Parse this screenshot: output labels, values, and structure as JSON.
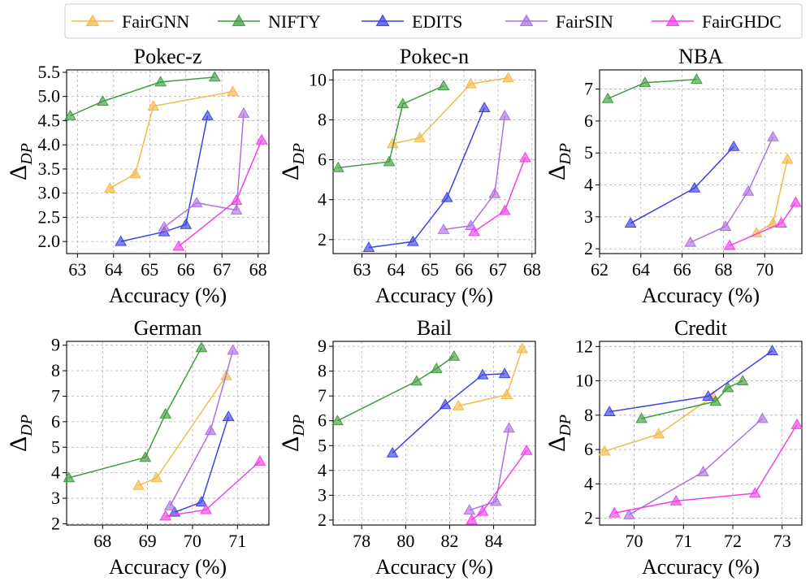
{
  "colors": {
    "FairGNN": "#f5b94a",
    "NIFTY": "#3f9c3f",
    "EDITS": "#3d43e0",
    "FairSIN": "#ae72e0",
    "FairGHDC": "#f240e8"
  },
  "legend": [
    "FairGNN",
    "NIFTY",
    "EDITS",
    "FairSIN",
    "FairGHDC"
  ],
  "chart_data": [
    {
      "type": "line",
      "title": "Pokec-z",
      "xlabel": "Accuracy (%)",
      "ylabel": "ΔDP",
      "xlim": [
        62.7,
        68.3
      ],
      "ylim": [
        1.75,
        5.55
      ],
      "xticks": [
        63,
        64,
        65,
        66,
        67,
        68
      ],
      "yticks": [
        2.0,
        2.5,
        3.0,
        3.5,
        4.0,
        4.5,
        5.0,
        5.5
      ],
      "ytick_labels": [
        "2.0",
        "2.5",
        "3.0",
        "3.5",
        "4.0",
        "4.5",
        "5.0",
        "5.5"
      ],
      "series": [
        {
          "name": "FairGNN",
          "points": [
            [
              63.9,
              3.1
            ],
            [
              64.6,
              3.4
            ],
            [
              65.1,
              4.8
            ],
            [
              67.3,
              5.1
            ]
          ]
        },
        {
          "name": "NIFTY",
          "points": [
            [
              62.8,
              4.6
            ],
            [
              63.7,
              4.9
            ],
            [
              65.3,
              5.3
            ],
            [
              66.8,
              5.4
            ]
          ]
        },
        {
          "name": "EDITS",
          "points": [
            [
              64.2,
              2.0
            ],
            [
              65.4,
              2.2
            ],
            [
              66.0,
              2.35
            ],
            [
              66.6,
              4.6
            ]
          ]
        },
        {
          "name": "FairSIN",
          "points": [
            [
              65.4,
              2.3
            ],
            [
              66.3,
              2.8
            ],
            [
              67.4,
              2.65
            ],
            [
              67.6,
              4.65
            ]
          ]
        },
        {
          "name": "FairGHDC",
          "points": [
            [
              65.8,
              1.9
            ],
            [
              67.4,
              2.85
            ],
            [
              68.1,
              4.1
            ]
          ]
        }
      ]
    },
    {
      "type": "line",
      "title": "Pokec-n",
      "xlabel": "Accuracy (%)",
      "ylabel": "ΔDP",
      "xlim": [
        62.15,
        68.1
      ],
      "ylim": [
        1.3,
        10.5
      ],
      "xticks": [
        63,
        64,
        65,
        66,
        67,
        68
      ],
      "yticks": [
        2,
        4,
        6,
        8,
        10
      ],
      "ytick_labels": [
        "2",
        "4",
        "6",
        "8",
        "10"
      ],
      "series": [
        {
          "name": "FairGNN",
          "points": [
            [
              63.9,
              6.8
            ],
            [
              64.7,
              7.1
            ],
            [
              66.2,
              9.8
            ],
            [
              67.3,
              10.1
            ]
          ]
        },
        {
          "name": "NIFTY",
          "points": [
            [
              62.3,
              5.6
            ],
            [
              63.8,
              5.9
            ],
            [
              64.2,
              8.8
            ],
            [
              65.4,
              9.7
            ]
          ]
        },
        {
          "name": "EDITS",
          "points": [
            [
              63.2,
              1.6
            ],
            [
              64.5,
              1.9
            ],
            [
              65.5,
              4.1
            ],
            [
              66.6,
              8.6
            ]
          ]
        },
        {
          "name": "FairSIN",
          "points": [
            [
              65.4,
              2.5
            ],
            [
              66.2,
              2.7
            ],
            [
              66.9,
              4.3
            ],
            [
              67.2,
              8.2
            ]
          ]
        },
        {
          "name": "FairGHDC",
          "points": [
            [
              66.3,
              2.4
            ],
            [
              67.2,
              3.45
            ],
            [
              67.8,
              6.1
            ]
          ]
        }
      ]
    },
    {
      "type": "line",
      "title": "NBA",
      "xlabel": "Accuracy (%)",
      "ylabel": "ΔDP",
      "xlim": [
        62.0,
        71.8
      ],
      "ylim": [
        1.85,
        7.6
      ],
      "xticks": [
        62,
        64,
        66,
        68,
        70
      ],
      "yticks": [
        2,
        3,
        4,
        5,
        6,
        7
      ],
      "ytick_labels": [
        "2",
        "3",
        "4",
        "5",
        "6",
        "7"
      ],
      "series": [
        {
          "name": "FairGNN",
          "points": [
            [
              69.6,
              2.5
            ],
            [
              70.4,
              2.8
            ],
            [
              71.1,
              4.8
            ]
          ]
        },
        {
          "name": "NIFTY",
          "points": [
            [
              62.4,
              6.7
            ],
            [
              64.2,
              7.2
            ],
            [
              66.7,
              7.3
            ]
          ]
        },
        {
          "name": "EDITS",
          "points": [
            [
              63.5,
              2.8
            ],
            [
              66.6,
              3.9
            ],
            [
              68.5,
              5.2
            ]
          ]
        },
        {
          "name": "FairSIN",
          "points": [
            [
              66.4,
              2.2
            ],
            [
              68.1,
              2.7
            ],
            [
              69.2,
              3.8
            ],
            [
              70.4,
              5.5
            ]
          ]
        },
        {
          "name": "FairGHDC",
          "points": [
            [
              68.3,
              2.1
            ],
            [
              70.8,
              2.8
            ],
            [
              71.5,
              3.45
            ]
          ]
        }
      ]
    },
    {
      "type": "line",
      "title": "German",
      "xlabel": "Accuracy (%)",
      "ylabel": "ΔDP",
      "xlim": [
        67.2,
        71.7
      ],
      "ylim": [
        1.95,
        9.15
      ],
      "xticks": [
        68,
        69,
        70,
        71
      ],
      "yticks": [
        2,
        3,
        4,
        5,
        6,
        7,
        8,
        9
      ],
      "ytick_labels": [
        "2",
        "3",
        "4",
        "5",
        "6",
        "7",
        "8",
        "9"
      ],
      "series": [
        {
          "name": "FairGNN",
          "points": [
            [
              68.8,
              3.5
            ],
            [
              69.2,
              3.8
            ],
            [
              70.75,
              7.8
            ]
          ]
        },
        {
          "name": "NIFTY",
          "points": [
            [
              67.25,
              3.8
            ],
            [
              68.95,
              4.6
            ],
            [
              69.4,
              6.3
            ],
            [
              70.2,
              8.9
            ]
          ]
        },
        {
          "name": "EDITS",
          "points": [
            [
              69.6,
              2.45
            ],
            [
              70.2,
              2.85
            ],
            [
              70.8,
              6.2
            ]
          ]
        },
        {
          "name": "FairSIN",
          "points": [
            [
              69.5,
              2.7
            ],
            [
              70.4,
              5.65
            ],
            [
              70.9,
              8.8
            ]
          ]
        },
        {
          "name": "FairGHDC",
          "points": [
            [
              69.4,
              2.3
            ],
            [
              70.3,
              2.55
            ],
            [
              71.5,
              4.45
            ]
          ]
        }
      ]
    },
    {
      "type": "line",
      "title": "Bail",
      "xlabel": "Accuracy (%)",
      "ylabel": "ΔDP",
      "xlim": [
        76.7,
        85.9
      ],
      "ylim": [
        1.8,
        9.2
      ],
      "xticks": [
        78,
        80,
        82,
        84
      ],
      "yticks": [
        2,
        3,
        4,
        5,
        6,
        7,
        8,
        9
      ],
      "ytick_labels": [
        "2",
        "3",
        "4",
        "5",
        "6",
        "7",
        "8",
        "9"
      ],
      "series": [
        {
          "name": "FairGNN",
          "points": [
            [
              82.4,
              6.6
            ],
            [
              84.6,
              7.05
            ],
            [
              85.3,
              8.9
            ]
          ]
        },
        {
          "name": "NIFTY",
          "points": [
            [
              76.9,
              6.0
            ],
            [
              80.5,
              7.6
            ],
            [
              81.4,
              8.1
            ],
            [
              82.2,
              8.6
            ]
          ]
        },
        {
          "name": "EDITS",
          "points": [
            [
              79.4,
              4.7
            ],
            [
              81.8,
              6.65
            ],
            [
              83.5,
              7.85
            ],
            [
              84.5,
              7.9
            ]
          ]
        },
        {
          "name": "FairSIN",
          "points": [
            [
              82.9,
              2.4
            ],
            [
              84.1,
              2.75
            ],
            [
              84.7,
              5.7
            ]
          ]
        },
        {
          "name": "FairGHDC",
          "points": [
            [
              83.0,
              2.0
            ],
            [
              83.5,
              2.35
            ],
            [
              85.5,
              4.8
            ]
          ]
        }
      ]
    },
    {
      "type": "line",
      "title": "Credit",
      "xlabel": "Accuracy (%)",
      "ylabel": "ΔDP",
      "xlim": [
        69.3,
        73.4
      ],
      "ylim": [
        1.6,
        12.3
      ],
      "xticks": [
        70,
        71,
        72,
        73
      ],
      "yticks": [
        2,
        4,
        6,
        8,
        10,
        12
      ],
      "ytick_labels": [
        "2",
        "4",
        "6",
        "8",
        "10",
        "12"
      ],
      "series": [
        {
          "name": "FairGNN",
          "points": [
            [
              69.4,
              5.9
            ],
            [
              70.5,
              6.9
            ],
            [
              71.6,
              9.1
            ]
          ]
        },
        {
          "name": "NIFTY",
          "points": [
            [
              70.15,
              7.8
            ],
            [
              71.65,
              8.8
            ],
            [
              71.9,
              9.6
            ],
            [
              72.2,
              10.0
            ]
          ]
        },
        {
          "name": "EDITS",
          "points": [
            [
              69.5,
              8.2
            ],
            [
              71.5,
              9.1
            ],
            [
              72.8,
              11.75
            ]
          ]
        },
        {
          "name": "FairSIN",
          "points": [
            [
              69.9,
              2.2
            ],
            [
              71.4,
              4.7
            ],
            [
              72.6,
              7.8
            ]
          ]
        },
        {
          "name": "FairGHDC",
          "points": [
            [
              69.6,
              2.3
            ],
            [
              70.85,
              3.0
            ],
            [
              72.45,
              3.45
            ],
            [
              73.3,
              7.45
            ]
          ]
        }
      ]
    }
  ]
}
